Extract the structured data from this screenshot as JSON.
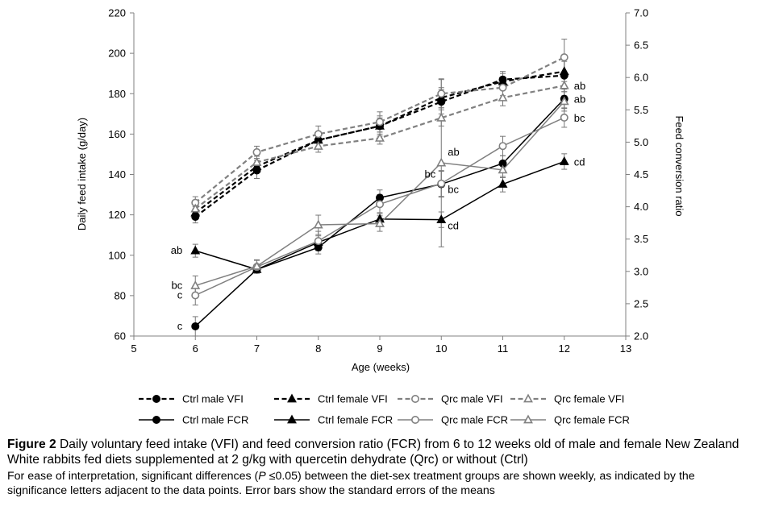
{
  "chart_data": {
    "type": "line",
    "x_label": "Age (weeks)",
    "y_left_label": "Daily feed intake (g/day)",
    "y_right_label": "Feed conversion ratio",
    "x_range": [
      5,
      13
    ],
    "x_ticks": [
      "5",
      "6",
      "7",
      "8",
      "9",
      "10",
      "11",
      "12",
      "13"
    ],
    "y_left_range": [
      60,
      220
    ],
    "y_left_ticks": [
      "60",
      "80",
      "100",
      "120",
      "140",
      "160",
      "180",
      "200",
      "220"
    ],
    "y_right_range": [
      2.0,
      7.0
    ],
    "y_right_ticks": [
      "2.0",
      "2.5",
      "3.0",
      "3.5",
      "4.0",
      "4.5",
      "5.0",
      "5.5",
      "6.0",
      "6.5",
      "7.0"
    ],
    "x": [
      6,
      7,
      8,
      9,
      10,
      11,
      12
    ],
    "series": [
      {
        "name": "Ctrl male VFI",
        "axis": "left",
        "dashed": true,
        "color": "#000000",
        "marker": "circle",
        "filled": true,
        "values": [
          119,
          142,
          157,
          164,
          176,
          187,
          189
        ],
        "errors": [
          3,
          4,
          4,
          5,
          6,
          4,
          8
        ]
      },
      {
        "name": "Ctrl female VFI",
        "axis": "left",
        "dashed": true,
        "color": "#000000",
        "marker": "triangle",
        "filled": true,
        "values": [
          121,
          144,
          157,
          164,
          178,
          186,
          191
        ],
        "errors": [
          3,
          3,
          4,
          4,
          5,
          4,
          5
        ]
      },
      {
        "name": "Qrc male VFI",
        "axis": "left",
        "dashed": true,
        "color": "#808080",
        "marker": "circle",
        "filled": false,
        "values": [
          126,
          151,
          160,
          166,
          180,
          183,
          198
        ],
        "errors": [
          3,
          3,
          4,
          5,
          7,
          4,
          9
        ]
      },
      {
        "name": "Qrc female VFI",
        "axis": "left",
        "dashed": true,
        "color": "#808080",
        "marker": "triangle",
        "filled": false,
        "values": [
          123,
          146,
          154,
          158,
          168,
          178,
          184
        ],
        "errors": [
          3,
          3,
          3,
          3,
          4,
          4,
          5
        ]
      },
      {
        "name": "Ctrl male FCR",
        "axis": "right",
        "dashed": false,
        "color": "#000000",
        "marker": "circle",
        "filled": true,
        "values": [
          2.15,
          3.03,
          3.37,
          4.14,
          4.35,
          4.67,
          5.67
        ],
        "errors": [
          0.15,
          0.05,
          0.1,
          0.12,
          0.2,
          0.12,
          0.15
        ]
      },
      {
        "name": "Ctrl female FCR",
        "axis": "right",
        "dashed": false,
        "color": "#000000",
        "marker": "triangle",
        "filled": true,
        "values": [
          3.32,
          3.03,
          3.45,
          3.81,
          3.8,
          4.35,
          4.7
        ],
        "errors": [
          0.1,
          0.05,
          0.1,
          0.1,
          0.12,
          0.12,
          0.12
        ]
      },
      {
        "name": "Qrc male FCR",
        "axis": "right",
        "dashed": false,
        "color": "#808080",
        "marker": "circle",
        "filled": false,
        "values": [
          2.63,
          3.07,
          3.47,
          4.04,
          4.36,
          4.94,
          5.38
        ],
        "errors": [
          0.15,
          0.1,
          0.15,
          0.15,
          0.2,
          0.15,
          0.15
        ]
      },
      {
        "name": "Qrc female FCR",
        "axis": "right",
        "dashed": false,
        "color": "#808080",
        "marker": "triangle",
        "filled": false,
        "values": [
          2.78,
          3.08,
          3.72,
          3.74,
          4.68,
          4.57,
          5.63
        ],
        "errors": [
          0.15,
          0.1,
          0.15,
          0.12,
          1.3,
          0.12,
          0.15
        ]
      }
    ],
    "annotations": [
      {
        "text": "ab",
        "x": 6,
        "series": "Ctrl female FCR",
        "side": "left"
      },
      {
        "text": "bc",
        "x": 6,
        "series": "Qrc female FCR",
        "side": "left"
      },
      {
        "text": "c",
        "x": 6,
        "series": "Qrc male FCR",
        "side": "left"
      },
      {
        "text": "c",
        "x": 6,
        "series": "Ctrl male FCR",
        "side": "left"
      },
      {
        "text": "ab",
        "x": 10,
        "series": "Qrc female FCR",
        "side": "above-right"
      },
      {
        "text": "bc",
        "x": 10,
        "series": "Ctrl male FCR",
        "side": "above-left"
      },
      {
        "text": "bc",
        "x": 10,
        "series": "Qrc male FCR",
        "side": "below-right"
      },
      {
        "text": "cd",
        "x": 10,
        "series": "Ctrl female FCR",
        "side": "below-right"
      },
      {
        "text": "ab",
        "x": 12,
        "series": "Qrc female VFI",
        "side": "right"
      },
      {
        "text": "ab",
        "x": 12,
        "series": "Ctrl male FCR",
        "side": "right"
      },
      {
        "text": "bc",
        "x": 12,
        "series": "Qrc male FCR",
        "side": "right"
      },
      {
        "text": "cd",
        "x": 12,
        "series": "Ctrl female FCR",
        "side": "right"
      }
    ]
  },
  "caption": {
    "figure_label": "Figure 2",
    "title": "Daily voluntary feed intake (VFI) and feed conversion ratio (FCR) from 6 to 12 weeks old of male and female New Zealand White rabbits fed diets supplemented at 2 g/kg with quercetin dehydrate (Qrc) or without (Ctrl)",
    "note_before_p": "For ease of interpretation, significant differences (",
    "note_p": "P",
    "note_after_p": " ≤0.05) between the diet-sex treatment groups are shown weekly, as indicated by the significance letters adjacent to the data points. Error bars show the standard errors of the means"
  }
}
